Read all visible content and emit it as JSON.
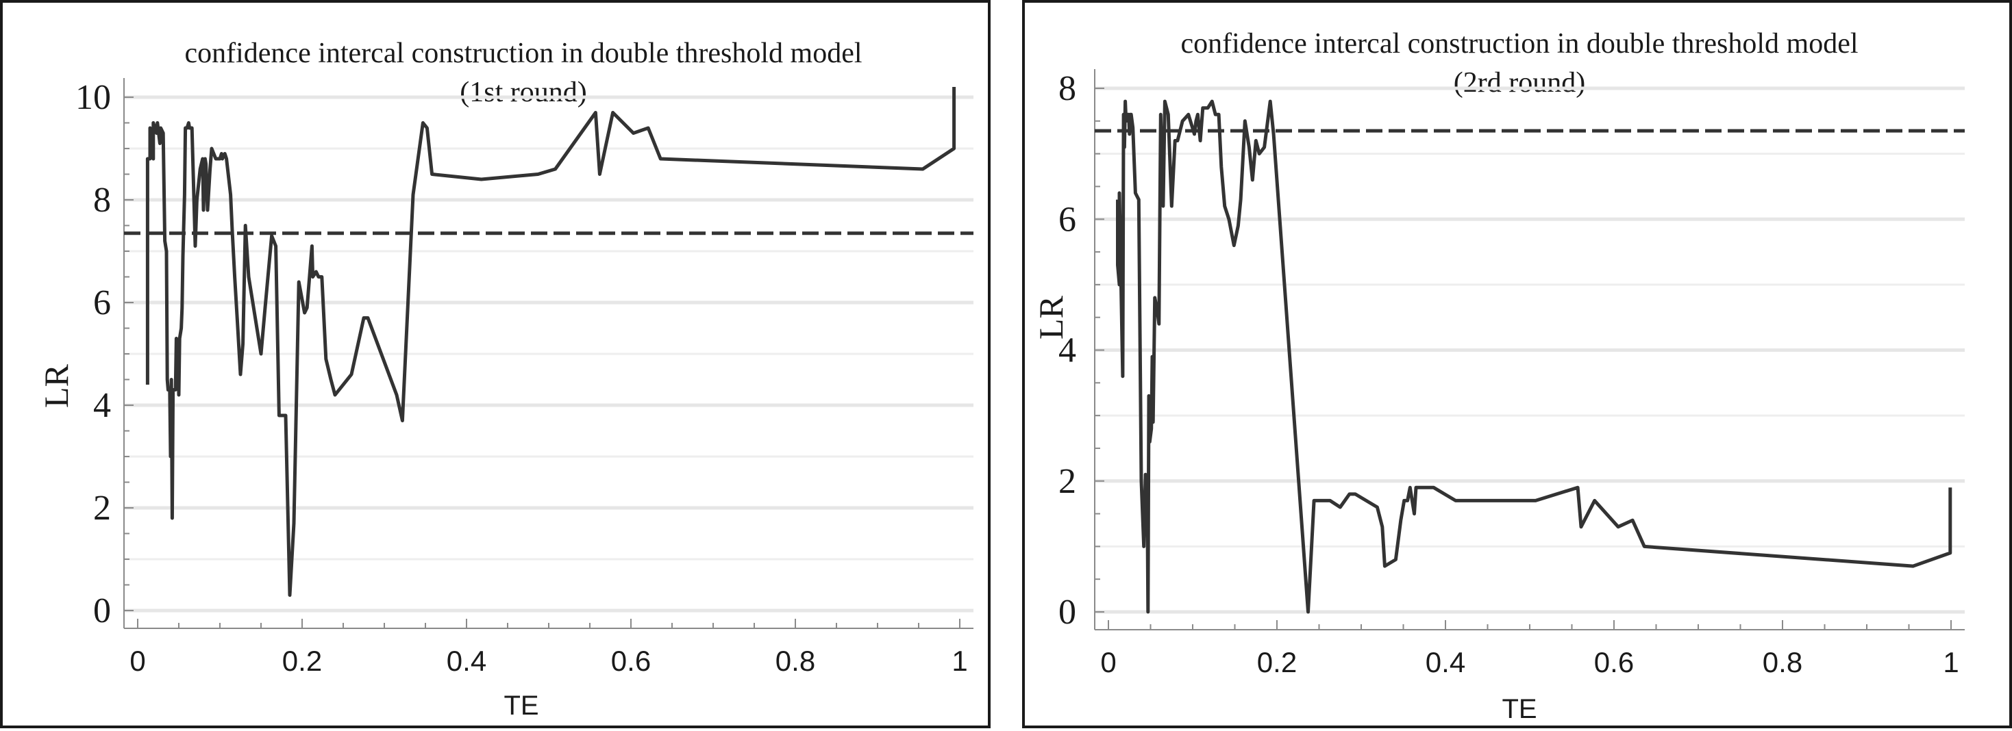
{
  "chart_data": [
    {
      "type": "line",
      "title": "confidence intercal construction in double threshold model",
      "subtitle": "(1st  round)",
      "xlabel": "TE",
      "ylabel": "LR",
      "xlim": [
        0,
        1
      ],
      "ylim": [
        0,
        10
      ],
      "xticks": [
        "0",
        "0.2",
        "0.4",
        "0.6",
        "0.8",
        "1"
      ],
      "yticks": [
        "0",
        "2",
        "4",
        "6",
        "8",
        "10"
      ],
      "grid": "horizontal",
      "threshold": 7.35,
      "series": [
        {
          "x": [
            0.012,
            0.012,
            0.015,
            0.015,
            0.019,
            0.019,
            0.023,
            0.024,
            0.027,
            0.028,
            0.031,
            0.033,
            0.034,
            0.035,
            0.036,
            0.037,
            0.039,
            0.04,
            0.041,
            0.042,
            0.043,
            0.046,
            0.047,
            0.049,
            0.05,
            0.051,
            0.053,
            0.054,
            0.055,
            0.057,
            0.058,
            0.06,
            0.062,
            0.063,
            0.066,
            0.07,
            0.072,
            0.076,
            0.079,
            0.08,
            0.082,
            0.083,
            0.085,
            0.088,
            0.09,
            0.095,
            0.1,
            0.102,
            0.103,
            0.106,
            0.108,
            0.113,
            0.115,
            0.118,
            0.121,
            0.125,
            0.128,
            0.131,
            0.135,
            0.14,
            0.15,
            0.155,
            0.163,
            0.168,
            0.172,
            0.18,
            0.185,
            0.19,
            0.196,
            0.203,
            0.206,
            0.208,
            0.212,
            0.213,
            0.217,
            0.22,
            0.224,
            0.229,
            0.235,
            0.24,
            0.26,
            0.275,
            0.28,
            0.315,
            0.322,
            0.335,
            0.347,
            0.352,
            0.358,
            0.418,
            0.487,
            0.508,
            0.557,
            0.562,
            0.578,
            0.603,
            0.621,
            0.636,
            0.955,
            0.993,
            0.993
          ],
          "y": [
            4.4,
            8.8,
            8.8,
            9.4,
            8.8,
            9.5,
            9.3,
            9.5,
            9.1,
            9.4,
            9.3,
            7.2,
            7.1,
            7.0,
            4.5,
            4.3,
            4.3,
            3.0,
            4.5,
            1.8,
            4.3,
            4.3,
            5.3,
            5.1,
            4.2,
            5.3,
            5.5,
            5.9,
            6.9,
            8.1,
            9.4,
            9.4,
            9.5,
            9.4,
            9.4,
            7.1,
            8.0,
            8.6,
            8.8,
            7.8,
            8.8,
            8.7,
            7.8,
            8.6,
            9.0,
            8.8,
            8.8,
            8.9,
            8.8,
            8.9,
            8.8,
            8.1,
            7.4,
            6.5,
            5.7,
            4.6,
            5.2,
            7.5,
            6.5,
            6.0,
            5.0,
            5.9,
            7.3,
            7.1,
            3.8,
            3.8,
            0.3,
            1.7,
            6.4,
            5.8,
            5.9,
            6.3,
            7.1,
            6.5,
            6.6,
            6.5,
            6.5,
            4.9,
            4.5,
            4.2,
            4.6,
            5.7,
            5.7,
            4.2,
            3.7,
            8.1,
            9.5,
            9.4,
            8.5,
            8.4,
            8.5,
            8.6,
            9.7,
            8.5,
            9.7,
            9.3,
            9.4,
            8.8,
            8.6,
            9.0,
            10.2
          ]
        }
      ]
    },
    {
      "type": "line",
      "title": "confidence intercal construction in double threshold model",
      "subtitle": "(2rd  round)",
      "xlabel": "TE",
      "ylabel": "LR",
      "xlim": [
        0,
        1
      ],
      "ylim": [
        0,
        8
      ],
      "xticks": [
        "0",
        "0.2",
        "0.4",
        "0.6",
        "0.8",
        "1"
      ],
      "yticks": [
        "0",
        "2",
        "4",
        "6",
        "8"
      ],
      "grid": "horizontal",
      "threshold": 7.35,
      "series": [
        {
          "x": [
            0.011,
            0.011,
            0.013,
            0.013,
            0.017,
            0.018,
            0.019,
            0.02,
            0.021,
            0.022,
            0.024,
            0.025,
            0.026,
            0.027,
            0.029,
            0.032,
            0.036,
            0.039,
            0.042,
            0.044,
            0.046,
            0.047,
            0.048,
            0.049,
            0.051,
            0.052,
            0.053,
            0.055,
            0.058,
            0.06,
            0.062,
            0.065,
            0.067,
            0.071,
            0.075,
            0.079,
            0.082,
            0.088,
            0.095,
            0.102,
            0.104,
            0.106,
            0.109,
            0.112,
            0.118,
            0.123,
            0.127,
            0.131,
            0.134,
            0.138,
            0.143,
            0.149,
            0.154,
            0.157,
            0.162,
            0.167,
            0.171,
            0.175,
            0.179,
            0.185,
            0.192,
            0.196,
            0.237,
            0.244,
            0.263,
            0.275,
            0.286,
            0.293,
            0.319,
            0.325,
            0.328,
            0.341,
            0.347,
            0.351,
            0.355,
            0.358,
            0.363,
            0.365,
            0.367,
            0.386,
            0.399,
            0.412,
            0.488,
            0.507,
            0.557,
            0.561,
            0.577,
            0.605,
            0.622,
            0.636,
            0.955,
            0.999,
            0.999
          ],
          "y": [
            6.3,
            5.3,
            5.0,
            6.4,
            3.6,
            7.6,
            7.1,
            7.8,
            7.5,
            7.6,
            7.6,
            7.3,
            7.6,
            7.6,
            7.4,
            6.4,
            6.3,
            2.0,
            1.0,
            2.1,
            1.9,
            0.0,
            3.3,
            2.6,
            2.8,
            3.9,
            2.9,
            4.8,
            4.6,
            4.4,
            7.6,
            6.2,
            7.8,
            7.6,
            6.2,
            7.2,
            7.2,
            7.5,
            7.6,
            7.3,
            7.5,
            7.6,
            7.2,
            7.7,
            7.7,
            7.8,
            7.6,
            7.6,
            6.8,
            6.2,
            6.0,
            5.6,
            5.9,
            6.3,
            7.5,
            7.1,
            6.6,
            7.2,
            7.0,
            7.1,
            7.8,
            7.3,
            0.0,
            1.7,
            1.7,
            1.6,
            1.8,
            1.8,
            1.6,
            1.3,
            0.7,
            0.8,
            1.4,
            1.7,
            1.7,
            1.9,
            1.5,
            1.9,
            1.9,
            1.9,
            1.8,
            1.7,
            1.7,
            1.7,
            1.9,
            1.3,
            1.7,
            1.3,
            1.4,
            1.0,
            0.7,
            0.9,
            1.9
          ]
        }
      ]
    }
  ]
}
